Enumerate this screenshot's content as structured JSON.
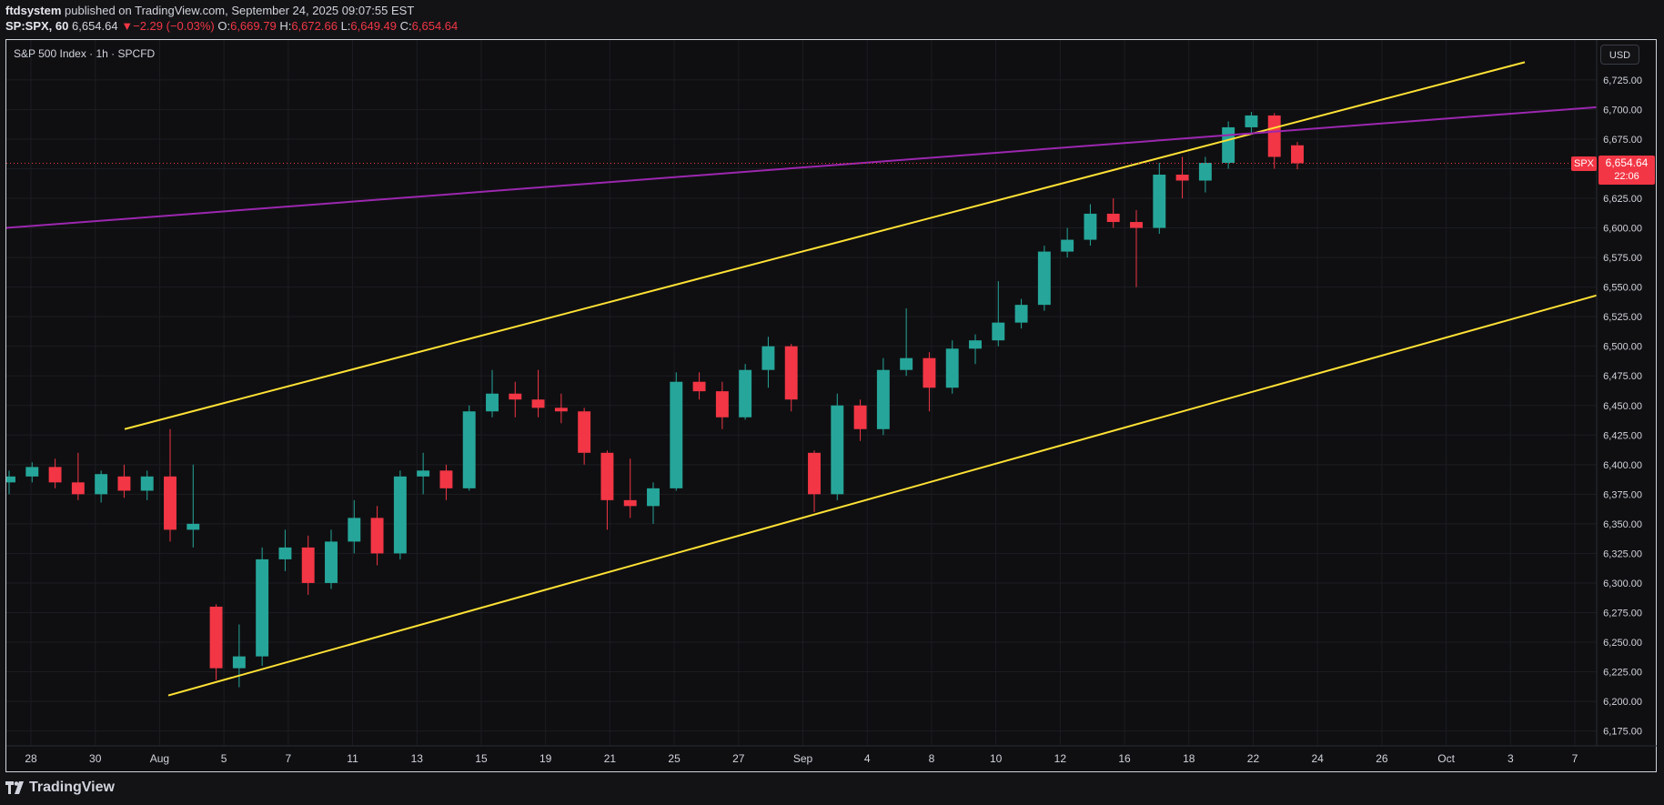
{
  "header": {
    "publisher": "ftdsystem",
    "published_text": " published on TradingView.com, September 24, 2025 09:07:55 EST"
  },
  "quote": {
    "symbol": "SP:SPX, 60",
    "price": "6,654.64",
    "change_arrow": "▼",
    "change": "−2.29 (−0.03%)",
    "o_label": "O:",
    "o_value": "6,669.79",
    "h_label": "H:",
    "h_value": "6,672.66",
    "l_label": "L:",
    "l_value": "6,649.49",
    "c_label": "C:",
    "c_value": "6,654.64"
  },
  "legend": "S&P 500 Index · 1h · SPCFD",
  "currency_button": "USD",
  "last_price_tag": {
    "symbol": "SPX",
    "price": "6,654.64",
    "countdown": "22:06"
  },
  "footer": {
    "brand": "TradingView",
    "logo_icon": "tradingview-logo-icon"
  },
  "colors": {
    "up": "#26a69a",
    "down": "#f23645",
    "channel": "#ffe135",
    "trendline": "#9c27b0",
    "background": "#0f0f11"
  },
  "chart_data": {
    "type": "candlestick",
    "title": "S&P 500 Index · 1h · SPCFD",
    "currency": "USD",
    "ylim": [
      6162.5,
      6737.5
    ],
    "y_ticks": [
      6175,
      6200,
      6225,
      6250,
      6275,
      6300,
      6325,
      6350,
      6375,
      6400,
      6425,
      6450,
      6475,
      6500,
      6525,
      6550,
      6575,
      6600,
      6625,
      6650,
      6675,
      6700,
      6725
    ],
    "y_tick_labels": [
      "6,175.00",
      "6,200.00",
      "6,225.00",
      "6,250.00",
      "6,275.00",
      "6,300.00",
      "6,325.00",
      "6,350.00",
      "6,375.00",
      "6,400.00",
      "6,425.00",
      "6,450.00",
      "6,475.00",
      "6,500.00",
      "6,525.00",
      "6,550.00",
      "6,575.00",
      "6,600.00",
      "6,625.00",
      "6,650.00",
      "6,675.00",
      "6,700.00",
      "6,725.00"
    ],
    "x_ticks": [
      "28",
      "30",
      "Aug",
      "5",
      "7",
      "11",
      "13",
      "15",
      "19",
      "21",
      "25",
      "27",
      "Sep",
      "4",
      "8",
      "10",
      "12",
      "16",
      "18",
      "22",
      "24",
      "26",
      "Oct",
      "3",
      "7"
    ],
    "last_price": 6654.64,
    "grid": true,
    "series": [
      {
        "x": "28",
        "o": 6385,
        "h": 6395,
        "l": 6375,
        "c": 6390
      },
      {
        "x": "28b",
        "o": 6390,
        "h": 6402,
        "l": 6385,
        "c": 6398
      },
      {
        "x": "29",
        "o": 6398,
        "h": 6405,
        "l": 6380,
        "c": 6385
      },
      {
        "x": "29b",
        "o": 6385,
        "h": 6410,
        "l": 6370,
        "c": 6375
      },
      {
        "x": "29c",
        "o": 6375,
        "h": 6395,
        "l": 6368,
        "c": 6392
      },
      {
        "x": "30",
        "o": 6390,
        "h": 6400,
        "l": 6372,
        "c": 6378
      },
      {
        "x": "30b",
        "o": 6378,
        "h": 6395,
        "l": 6370,
        "c": 6390
      },
      {
        "x": "31",
        "o": 6390,
        "h": 6430,
        "l": 6335,
        "c": 6345
      },
      {
        "x": "31b",
        "o": 6345,
        "h": 6400,
        "l": 6330,
        "c": 6350
      },
      {
        "x": "Aug",
        "o": 6280,
        "h": 6282,
        "l": 6218,
        "c": 6228
      },
      {
        "x": "Aug b",
        "o": 6228,
        "h": 6265,
        "l": 6212,
        "c": 6238
      },
      {
        "x": "4",
        "o": 6238,
        "h": 6330,
        "l": 6230,
        "c": 6320
      },
      {
        "x": "4b",
        "o": 6320,
        "h": 6345,
        "l": 6310,
        "c": 6330
      },
      {
        "x": "5",
        "o": 6330,
        "h": 6340,
        "l": 6290,
        "c": 6300
      },
      {
        "x": "6",
        "o": 6300,
        "h": 6345,
        "l": 6295,
        "c": 6335
      },
      {
        "x": "7",
        "o": 6335,
        "h": 6370,
        "l": 6325,
        "c": 6355
      },
      {
        "x": "7b",
        "o": 6355,
        "h": 6365,
        "l": 6315,
        "c": 6325
      },
      {
        "x": "8",
        "o": 6325,
        "h": 6395,
        "l": 6320,
        "c": 6390
      },
      {
        "x": "11",
        "o": 6390,
        "h": 6410,
        "l": 6375,
        "c": 6395
      },
      {
        "x": "11b",
        "o": 6395,
        "h": 6400,
        "l": 6370,
        "c": 6380
      },
      {
        "x": "12",
        "o": 6380,
        "h": 6450,
        "l": 6378,
        "c": 6445
      },
      {
        "x": "13",
        "o": 6445,
        "h": 6480,
        "l": 6440,
        "c": 6460
      },
      {
        "x": "14",
        "o": 6460,
        "h": 6470,
        "l": 6440,
        "c": 6455
      },
      {
        "x": "15",
        "o": 6455,
        "h": 6480,
        "l": 6440,
        "c": 6448
      },
      {
        "x": "18",
        "o": 6448,
        "h": 6460,
        "l": 6435,
        "c": 6445
      },
      {
        "x": "19",
        "o": 6445,
        "h": 6448,
        "l": 6400,
        "c": 6410
      },
      {
        "x": "20",
        "o": 6410,
        "h": 6412,
        "l": 6345,
        "c": 6370
      },
      {
        "x": "21",
        "o": 6370,
        "h": 6405,
        "l": 6355,
        "c": 6365
      },
      {
        "x": "21b",
        "o": 6365,
        "h": 6385,
        "l": 6350,
        "c": 6380
      },
      {
        "x": "22",
        "o": 6380,
        "h": 6478,
        "l": 6378,
        "c": 6470
      },
      {
        "x": "25",
        "o": 6470,
        "h": 6478,
        "l": 6455,
        "c": 6462
      },
      {
        "x": "26",
        "o": 6462,
        "h": 6470,
        "l": 6430,
        "c": 6440
      },
      {
        "x": "27",
        "o": 6440,
        "h": 6485,
        "l": 6438,
        "c": 6480
      },
      {
        "x": "28",
        "o": 6480,
        "h": 6508,
        "l": 6465,
        "c": 6500
      },
      {
        "x": "29",
        "o": 6500,
        "h": 6502,
        "l": 6445,
        "c": 6455
      },
      {
        "x": "Sep",
        "o": 6410,
        "h": 6412,
        "l": 6360,
        "c": 6375
      },
      {
        "x": "3",
        "o": 6375,
        "h": 6460,
        "l": 6370,
        "c": 6450
      },
      {
        "x": "4",
        "o": 6450,
        "h": 6455,
        "l": 6420,
        "c": 6430
      },
      {
        "x": "4b",
        "o": 6430,
        "h": 6490,
        "l": 6425,
        "c": 6480
      },
      {
        "x": "5",
        "o": 6480,
        "h": 6532,
        "l": 6475,
        "c": 6490
      },
      {
        "x": "5b",
        "o": 6490,
        "h": 6495,
        "l": 6445,
        "c": 6465
      },
      {
        "x": "8",
        "o": 6465,
        "h": 6505,
        "l": 6460,
        "c": 6498
      },
      {
        "x": "9",
        "o": 6498,
        "h": 6510,
        "l": 6485,
        "c": 6505
      },
      {
        "x": "10",
        "o": 6505,
        "h": 6555,
        "l": 6500,
        "c": 6520
      },
      {
        "x": "10b",
        "o": 6520,
        "h": 6540,
        "l": 6515,
        "c": 6535
      },
      {
        "x": "11",
        "o": 6535,
        "h": 6585,
        "l": 6530,
        "c": 6580
      },
      {
        "x": "12",
        "o": 6580,
        "h": 6600,
        "l": 6575,
        "c": 6590
      },
      {
        "x": "15",
        "o": 6590,
        "h": 6620,
        "l": 6585,
        "c": 6612
      },
      {
        "x": "16",
        "o": 6612,
        "h": 6625,
        "l": 6600,
        "c": 6605
      },
      {
        "x": "17",
        "o": 6605,
        "h": 6615,
        "l": 6550,
        "c": 6600
      },
      {
        "x": "18",
        "o": 6600,
        "h": 6655,
        "l": 6595,
        "c": 6645
      },
      {
        "x": "19",
        "o": 6645,
        "h": 6660,
        "l": 6625,
        "c": 6640
      },
      {
        "x": "19b",
        "o": 6640,
        "h": 6660,
        "l": 6630,
        "c": 6655
      },
      {
        "x": "22",
        "o": 6655,
        "h": 6690,
        "l": 6650,
        "c": 6685
      },
      {
        "x": "23",
        "o": 6685,
        "h": 6698,
        "l": 6680,
        "c": 6695
      },
      {
        "x": "23b",
        "o": 6695,
        "h": 6697,
        "l": 6650,
        "c": 6660
      },
      {
        "x": "24",
        "o": 6669.79,
        "h": 6672.66,
        "l": 6649.49,
        "c": 6654.64
      }
    ]
  }
}
